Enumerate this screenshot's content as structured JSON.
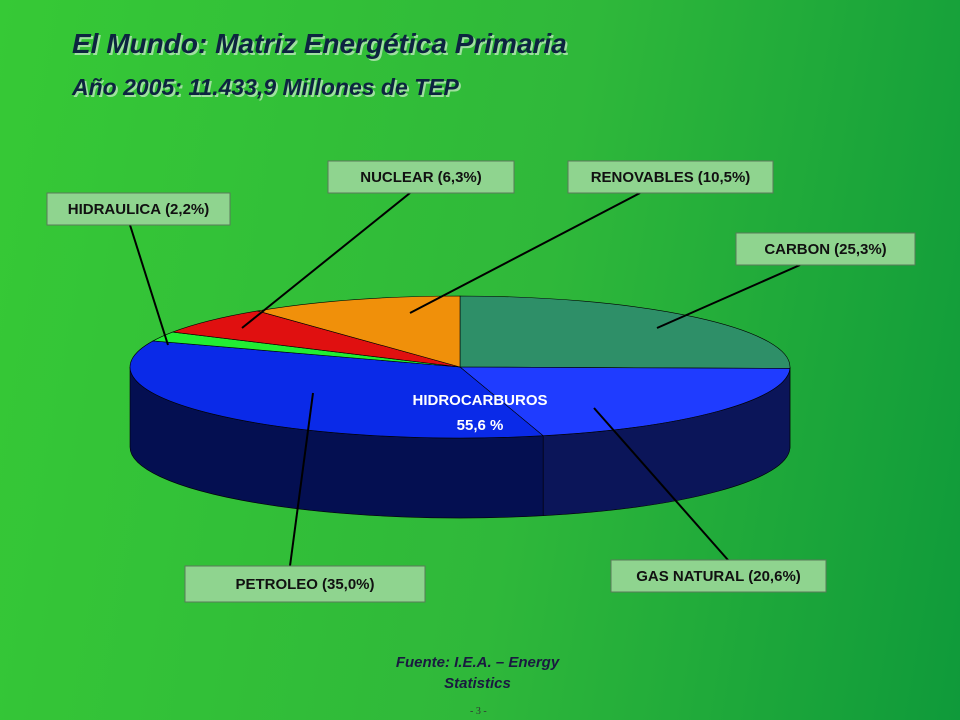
{
  "title": "El Mundo: Matriz Energética Primaria",
  "subtitle": "Año 2005: 11.433,9 Millones de TEP",
  "source": "Fuente: I.E.A. – Energy Statistics",
  "page_number": "- 3 -",
  "chart_data": {
    "type": "pie",
    "categories": [
      "CARBON",
      "GAS NATURAL",
      "PETROLEO",
      "HIDRAULICA",
      "NUCLEAR",
      "RENOVABLES"
    ],
    "values": [
      25.3,
      20.6,
      35.0,
      2.2,
      6.3,
      10.5
    ],
    "value_labels": [
      "(25,3%)",
      "(20,6%)",
      "(35,0%)",
      "(2,2%)",
      "(6,3%)",
      "(10,5%)"
    ],
    "colors": [
      "#2e8f68",
      "#1f3cff",
      "#0a2ae8",
      "#22ee33",
      "#e01010",
      "#f0900a"
    ],
    "annotation": {
      "text": "HIDROCARBUROS",
      "label": "55,6 %"
    }
  }
}
